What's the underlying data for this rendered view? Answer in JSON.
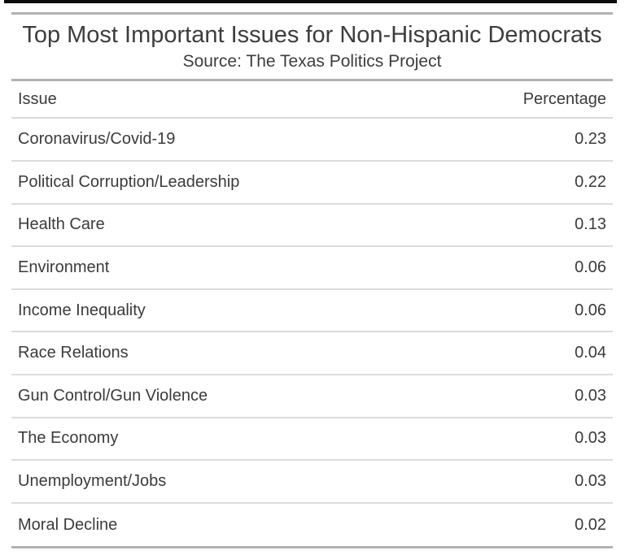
{
  "header": {
    "title": "Top Most Important Issues for Non-Hispanic Democrats",
    "source": "Source: The Texas Politics Project"
  },
  "table": {
    "columns": [
      "Issue",
      "Percentage"
    ],
    "rows": [
      {
        "issue": "Coronavirus/Covid-19",
        "percentage": "0.23"
      },
      {
        "issue": "Political Corruption/Leadership",
        "percentage": "0.22"
      },
      {
        "issue": "Health Care",
        "percentage": "0.13"
      },
      {
        "issue": "Environment",
        "percentage": "0.06"
      },
      {
        "issue": "Income Inequality",
        "percentage": "0.06"
      },
      {
        "issue": "Race Relations",
        "percentage": "0.04"
      },
      {
        "issue": "Gun Control/Gun Violence",
        "percentage": "0.03"
      },
      {
        "issue": "The Economy",
        "percentage": "0.03"
      },
      {
        "issue": "Unemployment/Jobs",
        "percentage": "0.03"
      },
      {
        "issue": "Moral Decline",
        "percentage": "0.02"
      }
    ]
  },
  "colors": {
    "top_border": "#0b0b0b",
    "thick_rule": "#b2b2b2",
    "row_rule": "#dcdcdc",
    "text": "#3b3b3b",
    "background": "#ffffff"
  },
  "chart_data": {
    "type": "table",
    "title": "Top Most Important Issues for Non-Hispanic Democrats",
    "subtitle": "Source: The Texas Politics Project",
    "columns": [
      "Issue",
      "Percentage"
    ],
    "categories": [
      "Coronavirus/Covid-19",
      "Political Corruption/Leadership",
      "Health Care",
      "Environment",
      "Income Inequality",
      "Race Relations",
      "Gun Control/Gun Violence",
      "The Economy",
      "Unemployment/Jobs",
      "Moral Decline"
    ],
    "values": [
      0.23,
      0.22,
      0.13,
      0.06,
      0.06,
      0.04,
      0.03,
      0.03,
      0.03,
      0.02
    ]
  }
}
